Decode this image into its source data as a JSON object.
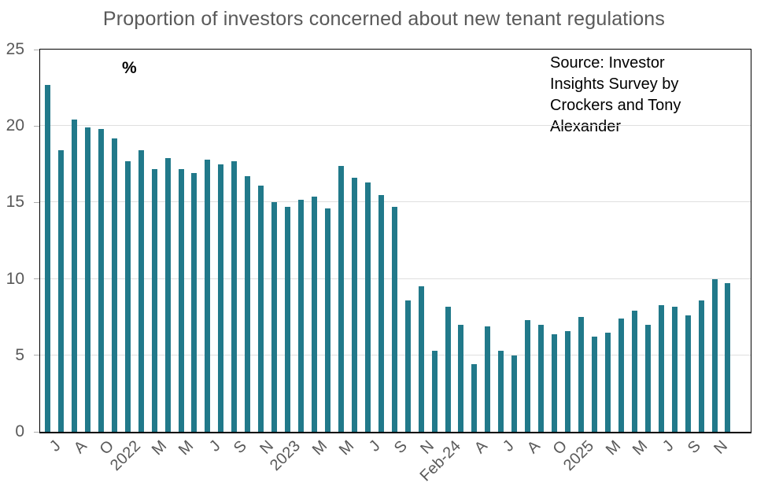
{
  "title": "Proportion of investors concerned about new tenant regulations",
  "percent_label": "%",
  "source": {
    "text": "Source: Investor Insights Survey by Crockers and Tony Alexander",
    "lines": [
      "Source: Investor",
      "Insights Survey by",
      "Crockers and Tony",
      "Alexander"
    ]
  },
  "colors": {
    "bar": "#21798a",
    "title_text": "#595959",
    "axis_text": "#595959",
    "gridline": "#dfdfdf",
    "plot_border": "#000000"
  },
  "chart_data": {
    "type": "bar",
    "title": "Proportion of investors concerned about new tenant regulations",
    "ylabel": "%",
    "xlabel": "",
    "ylim": [
      0,
      25
    ],
    "yticks": [
      0,
      5,
      10,
      15,
      20,
      25
    ],
    "grid": "horizontal",
    "legend_position": "none",
    "bar_color": "#21798a",
    "x_tick_every": 2,
    "x_tick_labels": [
      "J",
      "A",
      "O",
      "2022",
      "M",
      "M",
      "J",
      "S",
      "N",
      "2023",
      "M",
      "M",
      "J",
      "S",
      "N",
      "Feb-24",
      "A",
      "J",
      "A",
      "O",
      "2025",
      "M",
      "M",
      "J",
      "S",
      "N"
    ],
    "values": [
      22.7,
      18.4,
      20.4,
      19.9,
      19.8,
      19.2,
      17.7,
      18.4,
      17.2,
      17.9,
      17.2,
      16.9,
      17.8,
      17.5,
      17.7,
      16.7,
      16.1,
      15.0,
      14.7,
      15.2,
      15.4,
      14.6,
      17.4,
      16.6,
      16.3,
      15.5,
      14.7,
      8.6,
      9.5,
      5.3,
      8.2,
      7.0,
      4.4,
      6.9,
      5.3,
      5.0,
      7.3,
      7.0,
      6.4,
      6.6,
      7.5,
      6.2,
      6.5,
      7.4,
      7.9,
      7.0,
      8.3,
      8.2,
      7.6,
      8.6,
      10.0,
      9.7
    ],
    "annotation": "Source: Investor Insights Survey by Crockers and Tony Alexander",
    "annotation_position": "top-right"
  }
}
